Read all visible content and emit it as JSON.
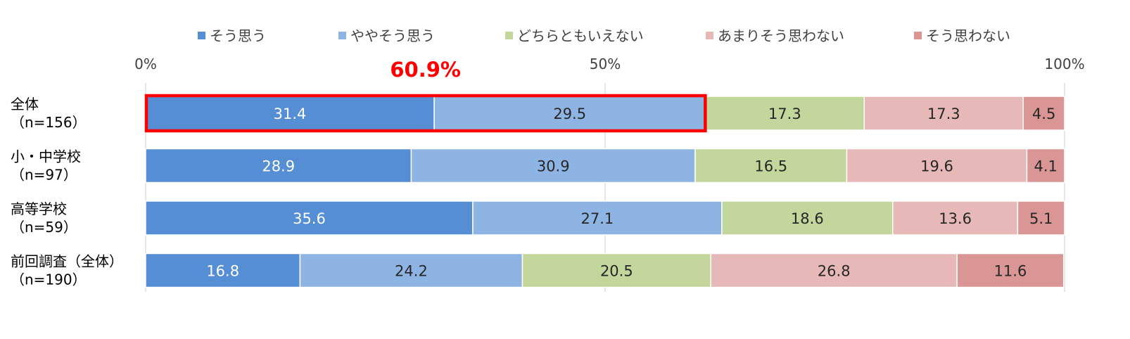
{
  "chart_data": {
    "type": "bar",
    "orientation": "horizontal",
    "stacked": true,
    "legend_position": "top",
    "grid": true,
    "xlim": [
      0,
      100
    ],
    "x_ticks": [
      {
        "value": 0,
        "label": "0%"
      },
      {
        "value": 50,
        "label": "50%"
      },
      {
        "value": 100,
        "label": "100%"
      }
    ],
    "categories": [
      {
        "label_line1": "全体",
        "label_line2": "（n=156）"
      },
      {
        "label_line1": "小・中学校",
        "label_line2": "（n=97）"
      },
      {
        "label_line1": "高等学校",
        "label_line2": "（n=59）"
      },
      {
        "label_line1": "前回調査（全体）",
        "label_line2": "（n=190）"
      }
    ],
    "series": [
      {
        "name": "そう思う",
        "color": "#558ED5",
        "label_color": "#ffffff",
        "values": [
          31.4,
          28.9,
          35.6,
          16.8
        ]
      },
      {
        "name": "ややそう思う",
        "color": "#8EB4E3",
        "label_color": "#262626",
        "values": [
          29.5,
          30.9,
          27.1,
          24.2
        ]
      },
      {
        "name": "どちらともいえない",
        "color": "#C3D69B",
        "label_color": "#262626",
        "values": [
          17.3,
          16.5,
          18.6,
          20.5
        ]
      },
      {
        "name": "あまりそう思わない",
        "color": "#E6B9B8",
        "label_color": "#262626",
        "values": [
          17.3,
          19.6,
          13.6,
          26.8
        ]
      },
      {
        "name": "そう思わない",
        "color": "#D99694",
        "label_color": "#262626",
        "values": [
          4.5,
          4.1,
          5.1,
          11.6
        ]
      }
    ],
    "annotation": {
      "text": "60.9%",
      "color": "#FF0000",
      "category_index": 0,
      "from_value": 0,
      "to_value": 60.9
    }
  }
}
